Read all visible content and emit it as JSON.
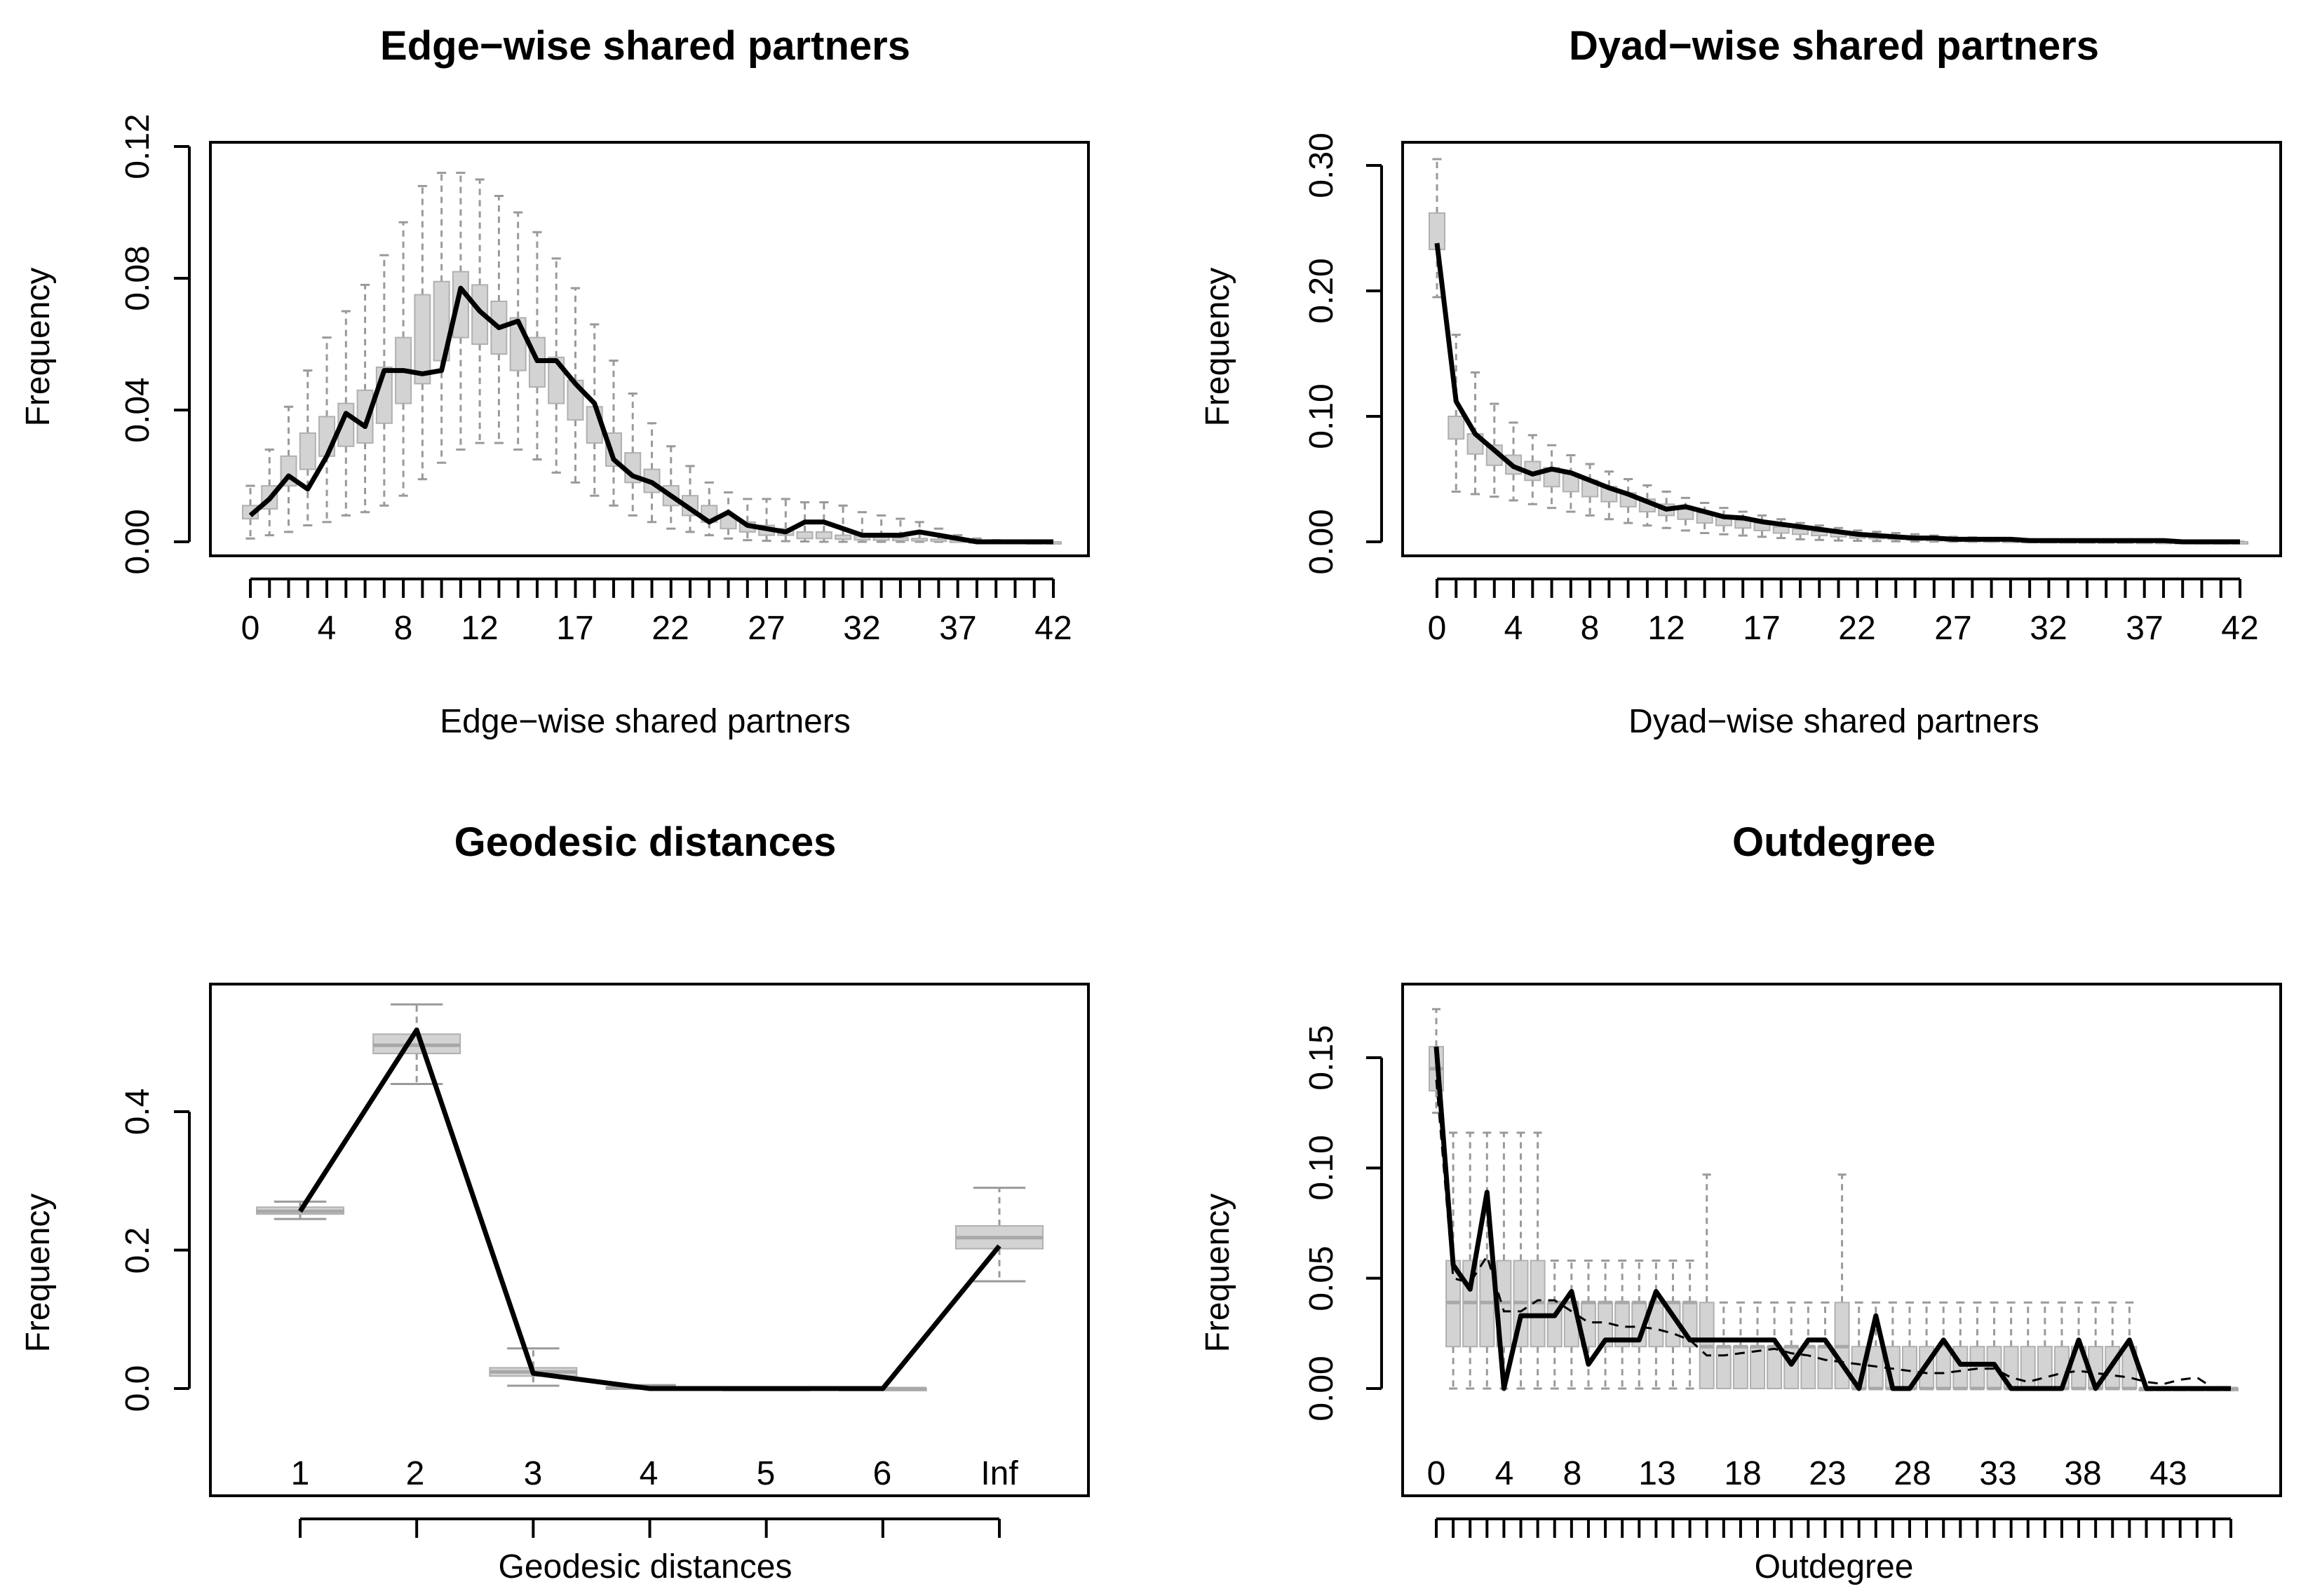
{
  "chart_data": [
    {
      "type": "line",
      "title": "Edge−wise shared partners",
      "xlabel": "Edge−wise shared partners",
      "ylabel": "Frequency",
      "ylim": [
        0,
        0.12
      ],
      "yticks": [
        "0.00",
        "0.04",
        "0.08",
        "0.12"
      ],
      "xtick_labels": [
        "0",
        "4",
        "8",
        "12",
        "17",
        "22",
        "27",
        "32",
        "37",
        "42"
      ],
      "categories": [
        0,
        1,
        2,
        3,
        4,
        5,
        6,
        7,
        8,
        9,
        10,
        11,
        12,
        13,
        14,
        15,
        16,
        17,
        18,
        19,
        20,
        21,
        22,
        23,
        24,
        25,
        26,
        27,
        28,
        29,
        30,
        31,
        32,
        33,
        34,
        35,
        36,
        37,
        38,
        39,
        40,
        41,
        42
      ],
      "box_q1": [
        0.007,
        0.01,
        0.017,
        0.022,
        0.026,
        0.029,
        0.03,
        0.036,
        0.042,
        0.048,
        0.055,
        0.062,
        0.06,
        0.057,
        0.052,
        0.047,
        0.042,
        0.037,
        0.03,
        0.023,
        0.018,
        0.015,
        0.011,
        0.008,
        0.006,
        0.004,
        0.003,
        0.002,
        0.002,
        0.001,
        0.001,
        0.0008,
        0.0006,
        0.0005,
        0.0004,
        0.0003,
        0.0002,
        0.0001,
        0,
        0,
        0,
        0,
        0
      ],
      "box_q3": [
        0.011,
        0.017,
        0.026,
        0.033,
        0.038,
        0.042,
        0.046,
        0.053,
        0.062,
        0.075,
        0.079,
        0.082,
        0.078,
        0.073,
        0.068,
        0.062,
        0.056,
        0.049,
        0.041,
        0.033,
        0.027,
        0.022,
        0.017,
        0.014,
        0.011,
        0.008,
        0.006,
        0.005,
        0.004,
        0.003,
        0.003,
        0.002,
        0.002,
        0.0015,
        0.0012,
        0.001,
        0.0008,
        0.0005,
        0.0003,
        0.0002,
        0.0001,
        0,
        0
      ],
      "whisker_low": [
        0.001,
        0.002,
        0.003,
        0.005,
        0.006,
        0.008,
        0.009,
        0.011,
        0.014,
        0.019,
        0.024,
        0.028,
        0.03,
        0.03,
        0.028,
        0.025,
        0.021,
        0.018,
        0.014,
        0.011,
        0.008,
        0.006,
        0.004,
        0.003,
        0.002,
        0.001,
        0.0005,
        0.0003,
        0.0002,
        0.0001,
        0,
        0,
        0,
        0,
        0,
        0,
        0,
        0,
        0,
        0,
        0,
        0,
        0
      ],
      "whisker_high": [
        0.017,
        0.028,
        0.041,
        0.052,
        0.062,
        0.07,
        0.078,
        0.087,
        0.097,
        0.108,
        0.112,
        0.112,
        0.11,
        0.105,
        0.1,
        0.094,
        0.086,
        0.077,
        0.066,
        0.055,
        0.045,
        0.036,
        0.029,
        0.023,
        0.018,
        0.015,
        0.013,
        0.013,
        0.013,
        0.012,
        0.012,
        0.011,
        0.009,
        0.008,
        0.007,
        0.006,
        0.004,
        0.002,
        0.001,
        0.0005,
        0.0003,
        0.0001,
        0
      ],
      "observed": [
        0.008,
        0.013,
        0.02,
        0.016,
        0.026,
        0.039,
        0.035,
        0.052,
        0.052,
        0.051,
        0.052,
        0.077,
        0.07,
        0.065,
        0.067,
        0.055,
        0.055,
        0.048,
        0.042,
        0.025,
        0.02,
        0.018,
        0.014,
        0.01,
        0.006,
        0.009,
        0.005,
        0.004,
        0.003,
        0.006,
        0.006,
        0.004,
        0.002,
        0.002,
        0.002,
        0.003,
        0.002,
        0.001,
        0,
        0,
        0,
        0,
        0
      ]
    },
    {
      "type": "line",
      "title": "Dyad−wise shared partners",
      "xlabel": "Dyad−wise shared partners",
      "ylabel": "Frequency",
      "ylim": [
        0,
        0.3
      ],
      "yticks": [
        "0.00",
        "0.10",
        "0.20",
        "0.30"
      ],
      "xtick_labels": [
        "0",
        "4",
        "8",
        "12",
        "17",
        "22",
        "27",
        "32",
        "37",
        "42"
      ],
      "categories": [
        0,
        1,
        2,
        3,
        4,
        5,
        6,
        7,
        8,
        9,
        10,
        11,
        12,
        13,
        14,
        15,
        16,
        17,
        18,
        19,
        20,
        21,
        22,
        23,
        24,
        25,
        26,
        27,
        28,
        29,
        30,
        31,
        32,
        33,
        34,
        35,
        36,
        37,
        38,
        39,
        40,
        41,
        42
      ],
      "box_q1": [
        0.233,
        0.082,
        0.07,
        0.061,
        0.054,
        0.049,
        0.044,
        0.04,
        0.036,
        0.032,
        0.028,
        0.024,
        0.021,
        0.018,
        0.015,
        0.013,
        0.011,
        0.009,
        0.007,
        0.006,
        0.005,
        0.004,
        0.003,
        0.0025,
        0.002,
        0.0015,
        0.001,
        0.001,
        0.0008,
        0.0006,
        0.0005,
        0.0004,
        0.0003,
        0.0002,
        0.0002,
        0.0001,
        0.0001,
        0,
        0,
        0,
        0,
        0,
        0
      ],
      "box_q3": [
        0.262,
        0.1,
        0.086,
        0.077,
        0.069,
        0.064,
        0.059,
        0.054,
        0.049,
        0.044,
        0.039,
        0.034,
        0.03,
        0.026,
        0.023,
        0.02,
        0.017,
        0.015,
        0.012,
        0.01,
        0.008,
        0.007,
        0.006,
        0.005,
        0.004,
        0.003,
        0.0025,
        0.002,
        0.0018,
        0.0015,
        0.0012,
        0.001,
        0.0009,
        0.0008,
        0.0007,
        0.0006,
        0.0005,
        0.0004,
        0.0003,
        0.0002,
        0.0001,
        0,
        0
      ],
      "whisker_low": [
        0.195,
        0.04,
        0.038,
        0.036,
        0.033,
        0.03,
        0.027,
        0.024,
        0.021,
        0.018,
        0.015,
        0.013,
        0.011,
        0.009,
        0.007,
        0.006,
        0.005,
        0.004,
        0.003,
        0.002,
        0.0015,
        0.001,
        0.0008,
        0.0006,
        0.0004,
        0.0003,
        0.0002,
        0.0001,
        0,
        0,
        0,
        0,
        0,
        0,
        0,
        0,
        0,
        0,
        0,
        0,
        0,
        0,
        0
      ],
      "whisker_high": [
        0.305,
        0.165,
        0.135,
        0.11,
        0.095,
        0.085,
        0.077,
        0.069,
        0.062,
        0.056,
        0.05,
        0.045,
        0.04,
        0.035,
        0.031,
        0.027,
        0.024,
        0.021,
        0.018,
        0.015,
        0.013,
        0.011,
        0.009,
        0.008,
        0.007,
        0.006,
        0.005,
        0.004,
        0.0035,
        0.003,
        0.0025,
        0.002,
        0.0018,
        0.0015,
        0.0012,
        0.001,
        0.0009,
        0.0008,
        0.0006,
        0.0004,
        0.0003,
        0.0002,
        0.0001
      ],
      "observed": [
        0.238,
        0.112,
        0.086,
        0.073,
        0.06,
        0.054,
        0.058,
        0.055,
        0.049,
        0.043,
        0.038,
        0.032,
        0.026,
        0.028,
        0.024,
        0.02,
        0.019,
        0.016,
        0.014,
        0.012,
        0.01,
        0.008,
        0.006,
        0.005,
        0.004,
        0.003,
        0.003,
        0.002,
        0.002,
        0.002,
        0.002,
        0.001,
        0.001,
        0.001,
        0.001,
        0.001,
        0.001,
        0.001,
        0.001,
        0,
        0,
        0,
        0
      ]
    },
    {
      "type": "line",
      "title": "Geodesic distances",
      "xlabel": "Geodesic distances",
      "ylabel": "Frequency",
      "ylim": [
        0,
        0.55
      ],
      "yticks": [
        "0.0",
        "0.2",
        "0.4"
      ],
      "xtick_labels": [
        "1",
        "2",
        "3",
        "4",
        "5",
        "6",
        "Inf"
      ],
      "categories": [
        "1",
        "2",
        "3",
        "4",
        "5",
        "6",
        "Inf"
      ],
      "box_q1": [
        0.252,
        0.484,
        0.018,
        0,
        0,
        0,
        0.202
      ],
      "box_q3": [
        0.262,
        0.512,
        0.03,
        0.002,
        0,
        0,
        0.235
      ],
      "whisker_low": [
        0.245,
        0.44,
        0.004,
        0,
        0,
        0,
        0.155
      ],
      "whisker_high": [
        0.27,
        0.555,
        0.058,
        0.005,
        0,
        0.001,
        0.29
      ],
      "median": [
        0.256,
        0.496,
        0.024,
        0.001,
        0,
        0,
        0.218
      ],
      "observed": [
        0.256,
        0.518,
        0.022,
        0,
        0,
        0,
        0.206
      ]
    },
    {
      "type": "line",
      "title": "Outdegree",
      "xlabel": "Outdegree",
      "ylabel": "Frequency",
      "ylim": [
        0,
        0.17
      ],
      "yticks": [
        "0.00",
        "0.05",
        "0.10",
        "0.15"
      ],
      "xtick_labels": [
        "0",
        "4",
        "8",
        "13",
        "18",
        "23",
        "28",
        "33",
        "38",
        "43"
      ],
      "categories": [
        0,
        1,
        2,
        3,
        4,
        5,
        6,
        7,
        8,
        9,
        10,
        11,
        12,
        13,
        14,
        15,
        16,
        17,
        18,
        19,
        20,
        21,
        22,
        23,
        24,
        25,
        26,
        27,
        28,
        29,
        30,
        31,
        32,
        33,
        34,
        35,
        36,
        37,
        38,
        39,
        40,
        41,
        42,
        43,
        44,
        45,
        46,
        47
      ],
      "box_q1": [
        0.135,
        0.019,
        0.019,
        0.019,
        0.019,
        0.019,
        0.019,
        0.019,
        0.019,
        0.019,
        0.019,
        0.019,
        0.019,
        0.019,
        0.019,
        0.019,
        0,
        0,
        0,
        0,
        0,
        0,
        0,
        0,
        0,
        0,
        0,
        0,
        0,
        0,
        0,
        0,
        0,
        0,
        0,
        0,
        0,
        0,
        0,
        0,
        0,
        0,
        0,
        0,
        0,
        0,
        0,
        0
      ],
      "box_q3": [
        0.155,
        0.058,
        0.058,
        0.058,
        0.058,
        0.058,
        0.058,
        0.039,
        0.039,
        0.039,
        0.039,
        0.039,
        0.039,
        0.039,
        0.039,
        0.039,
        0.039,
        0.019,
        0.019,
        0.019,
        0.019,
        0.019,
        0.019,
        0.019,
        0.039,
        0.019,
        0.019,
        0.019,
        0.019,
        0.019,
        0.019,
        0.019,
        0.019,
        0.019,
        0.019,
        0.019,
        0.019,
        0.019,
        0.019,
        0.019,
        0.019,
        0.019,
        0,
        0,
        0,
        0,
        0,
        0
      ],
      "median": [
        0.145,
        0.039,
        0.039,
        0.039,
        0.039,
        0.039,
        0.039,
        0.039,
        0.039,
        0.039,
        0.039,
        0.039,
        0.039,
        0.039,
        0.039,
        0.039,
        0.019,
        0.019,
        0.019,
        0.019,
        0.019,
        0.019,
        0.019,
        0.019,
        0.019,
        0,
        0,
        0,
        0,
        0,
        0,
        0,
        0,
        0,
        0,
        0,
        0,
        0,
        0,
        0,
        0,
        0,
        0,
        0,
        0,
        0,
        0,
        0
      ],
      "whisker_low": [
        0.125,
        0,
        0,
        0,
        0,
        0,
        0,
        0,
        0,
        0,
        0,
        0,
        0,
        0,
        0,
        0,
        0,
        0,
        0,
        0,
        0,
        0,
        0,
        0,
        0,
        0,
        0,
        0,
        0,
        0,
        0,
        0,
        0,
        0,
        0,
        0,
        0,
        0,
        0,
        0,
        0,
        0,
        0,
        0,
        0,
        0,
        0,
        0
      ],
      "whisker_high": [
        0.172,
        0.116,
        0.116,
        0.116,
        0.116,
        0.116,
        0.116,
        0.058,
        0.058,
        0.058,
        0.058,
        0.058,
        0.058,
        0.058,
        0.058,
        0.058,
        0.097,
        0.039,
        0.039,
        0.039,
        0.039,
        0.039,
        0.039,
        0.039,
        0.097,
        0.039,
        0.039,
        0.039,
        0.039,
        0.039,
        0.039,
        0.039,
        0.039,
        0.039,
        0.039,
        0.039,
        0.039,
        0.039,
        0.039,
        0.039,
        0.039,
        0.039,
        0,
        0,
        0,
        0,
        0,
        0
      ],
      "observed": [
        0.155,
        0.056,
        0.045,
        0.089,
        0,
        0.033,
        0.033,
        0.033,
        0.044,
        0.011,
        0.022,
        0.022,
        0.022,
        0.044,
        0.033,
        0.022,
        0.022,
        0.022,
        0.022,
        0.022,
        0.022,
        0.011,
        0.022,
        0.022,
        0.011,
        0,
        0.033,
        0,
        0,
        0.011,
        0.022,
        0.011,
        0.011,
        0.011,
        0,
        0,
        0,
        0,
        0.022,
        0,
        0.011,
        0.022,
        0,
        0,
        0,
        0,
        0,
        0
      ],
      "simulated_mean": [
        0.14,
        0.05,
        0.048,
        0.06,
        0.035,
        0.035,
        0.04,
        0.04,
        0.035,
        0.03,
        0.03,
        0.028,
        0.028,
        0.027,
        0.025,
        0.022,
        0.015,
        0.015,
        0.016,
        0.017,
        0.018,
        0.016,
        0.015,
        0.013,
        0.012,
        0.011,
        0.01,
        0.009,
        0.008,
        0.007,
        0.007,
        0.008,
        0.009,
        0.009,
        0.005,
        0.003,
        0.005,
        0.007,
        0.008,
        0.007,
        0.006,
        0.005,
        0.003,
        0.002,
        0.004,
        0.005,
        0,
        0
      ]
    }
  ]
}
